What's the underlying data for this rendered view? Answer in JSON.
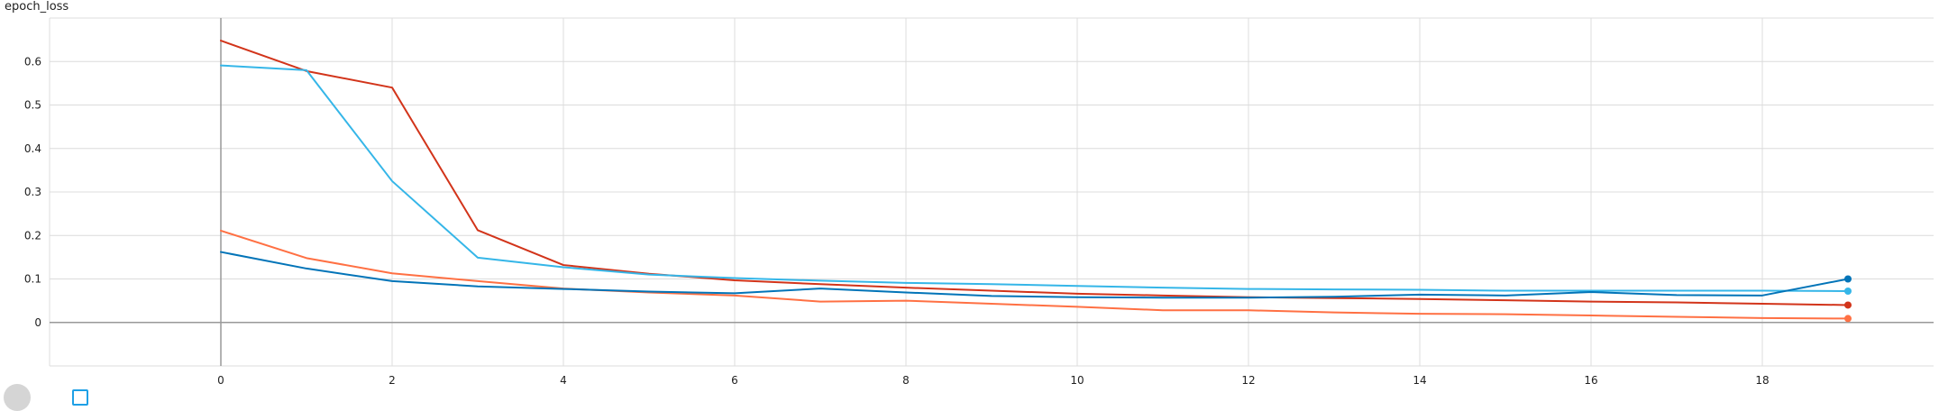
{
  "chart_data": {
    "type": "line",
    "title": "epoch_loss",
    "xlabel": "",
    "ylabel": "",
    "xlim": [
      -2,
      20
    ],
    "ylim": [
      -0.1,
      0.7
    ],
    "x_ticks": [
      0,
      2,
      4,
      6,
      8,
      10,
      12,
      14,
      16,
      18
    ],
    "y_ticks": [
      0,
      0.1,
      0.2,
      0.3,
      0.4,
      0.5,
      0.6
    ],
    "grid": true,
    "x": [
      0,
      1,
      2,
      3,
      4,
      5,
      6,
      7,
      8,
      9,
      10,
      11,
      12,
      13,
      14,
      15,
      16,
      17,
      18,
      19
    ],
    "series": [
      {
        "color": "#d2341a",
        "values": [
          0.648,
          0.578,
          0.54,
          0.212,
          0.132,
          0.112,
          0.097,
          0.088,
          0.08,
          0.073,
          0.066,
          0.062,
          0.058,
          0.056,
          0.054,
          0.051,
          0.048,
          0.046,
          0.043,
          0.04
        ]
      },
      {
        "color": "#35b6e8",
        "values": [
          0.591,
          0.58,
          0.325,
          0.149,
          0.127,
          0.11,
          0.102,
          0.096,
          0.091,
          0.088,
          0.084,
          0.08,
          0.077,
          0.076,
          0.075,
          0.073,
          0.073,
          0.073,
          0.073,
          0.072
        ]
      },
      {
        "color": "#ff7043",
        "values": [
          0.211,
          0.148,
          0.113,
          0.095,
          0.078,
          0.069,
          0.062,
          0.048,
          0.05,
          0.043,
          0.036,
          0.028,
          0.028,
          0.023,
          0.02,
          0.019,
          0.016,
          0.013,
          0.01,
          0.009
        ]
      },
      {
        "color": "#0274b8",
        "values": [
          0.162,
          0.124,
          0.095,
          0.083,
          0.077,
          0.071,
          0.067,
          0.078,
          0.069,
          0.061,
          0.058,
          0.057,
          0.057,
          0.059,
          0.064,
          0.062,
          0.07,
          0.063,
          0.062,
          0.1
        ]
      }
    ]
  },
  "colors": {
    "grid": "#dcdcdc",
    "axis_zero": "#999999",
    "tick_text": "#212121",
    "toggle_bg": "#d5d5d5",
    "checkbox_border": "#1ea0e6"
  }
}
